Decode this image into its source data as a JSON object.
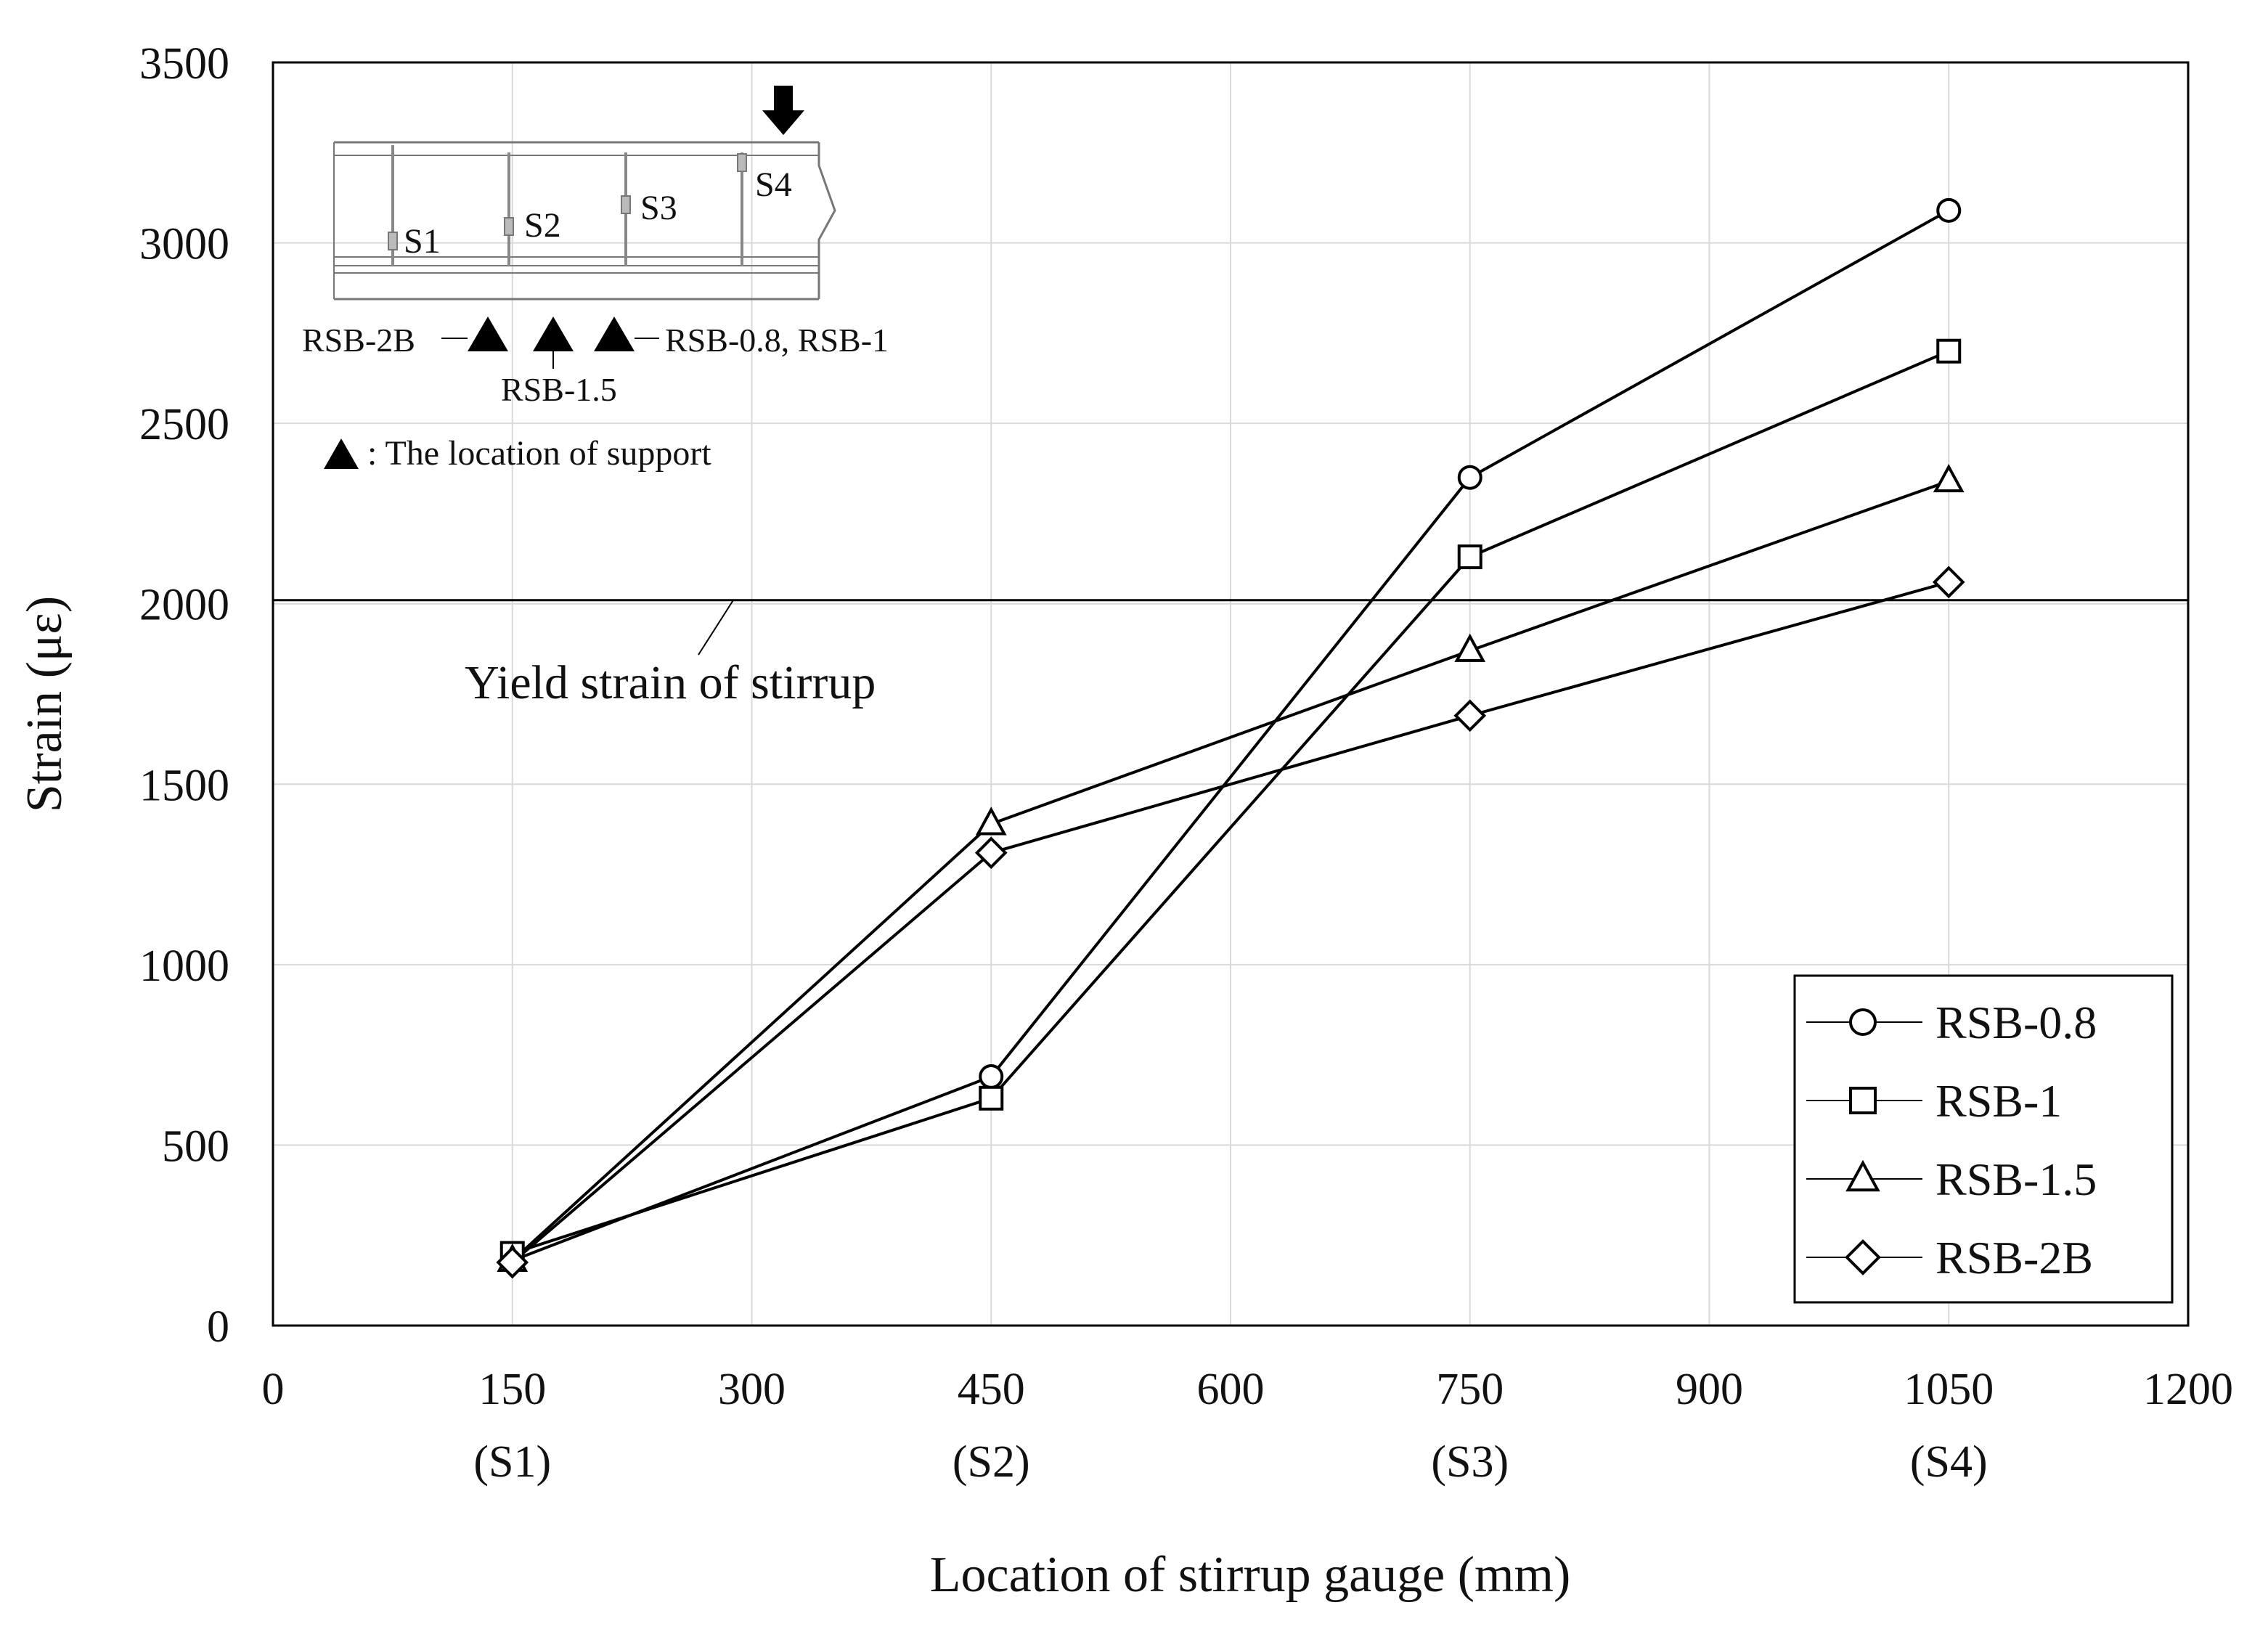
{
  "chart_data": {
    "type": "line",
    "title": "",
    "xlabel": "Location of stirrup gauge (mm)",
    "ylabel": "Strain (με)",
    "xlim": [
      0,
      1200
    ],
    "ylim": [
      0,
      3500
    ],
    "grid": true,
    "legend_position": "bottom-right",
    "x_ticks": [
      "0",
      "150",
      "300",
      "450",
      "600",
      "750",
      "900",
      "1050",
      "1200"
    ],
    "x_ticks_values": [
      0,
      150,
      300,
      450,
      600,
      750,
      900,
      1050,
      1200
    ],
    "x_sublabels": [
      {
        "x": 150,
        "label": "(S1)"
      },
      {
        "x": 450,
        "label": "(S2)"
      },
      {
        "x": 750,
        "label": "(S3)"
      },
      {
        "x": 1050,
        "label": "(S4)"
      }
    ],
    "y_ticks": [
      "0",
      "500",
      "1000",
      "1500",
      "2000",
      "2500",
      "3000",
      "3500"
    ],
    "y_ticks_values": [
      0,
      500,
      1000,
      1500,
      2000,
      2500,
      3000,
      3500
    ],
    "x": [
      150,
      450,
      750,
      1050
    ],
    "series": [
      {
        "name": "RSB-0.8",
        "marker": "circle",
        "values": [
          180,
          690,
          2350,
          3090
        ]
      },
      {
        "name": "RSB-1",
        "marker": "square",
        "values": [
          200,
          630,
          2130,
          2700
        ]
      },
      {
        "name": "RSB-1.5",
        "marker": "triangle",
        "values": [
          180,
          1390,
          1870,
          2340
        ]
      },
      {
        "name": "RSB-2B",
        "marker": "diamond",
        "values": [
          175,
          1310,
          1690,
          2060
        ]
      }
    ],
    "reference_line": {
      "y": 2010,
      "label": "Yield strain of stirrup"
    }
  },
  "inset": {
    "gauges": [
      "S1",
      "S2",
      "S3",
      "S4"
    ],
    "support_labels": {
      "left": "RSB-2B",
      "middle": "RSB-1.5",
      "right": "RSB-0.8, RSB-1"
    },
    "legend_note": ": The location of support"
  },
  "colors": {
    "line": "#000000",
    "grid": "#d9d9d9",
    "marker_fill": "#ffffff"
  }
}
